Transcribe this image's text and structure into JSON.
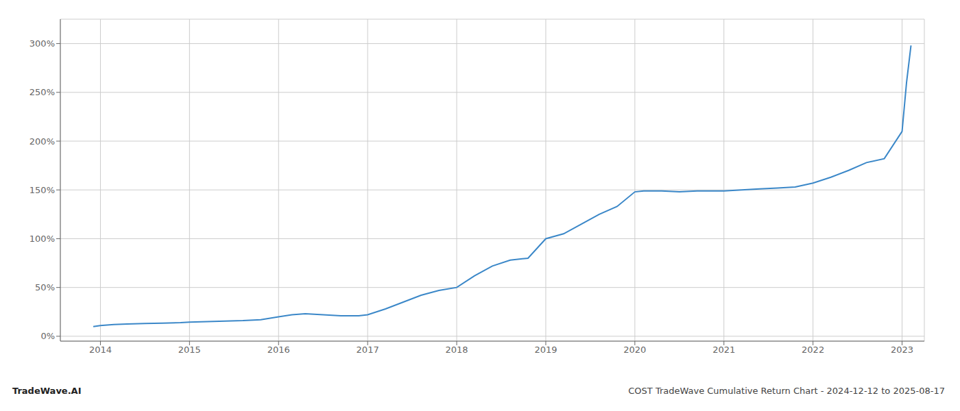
{
  "chart_data": {
    "type": "line",
    "title": "COST TradeWave Cumulative Return Chart - 2024-12-12 to 2025-08-17",
    "annotations": [
      "TradeWave.AI"
    ],
    "color": "#3a87c8",
    "x": [
      2013.92,
      2014.0,
      2014.15,
      2014.3,
      2014.5,
      2014.7,
      2014.9,
      2015.0,
      2015.2,
      2015.4,
      2015.6,
      2015.8,
      2016.0,
      2016.15,
      2016.3,
      2016.5,
      2016.7,
      2016.9,
      2017.0,
      2017.2,
      2017.4,
      2017.6,
      2017.8,
      2018.0,
      2018.2,
      2018.4,
      2018.6,
      2018.8,
      2019.0,
      2019.2,
      2019.4,
      2019.6,
      2019.8,
      2020.0,
      2020.1,
      2020.3,
      2020.5,
      2020.7,
      2020.9,
      2021.0,
      2021.2,
      2021.4,
      2021.6,
      2021.8,
      2022.0,
      2022.2,
      2022.4,
      2022.6,
      2022.8,
      2023.0,
      2023.05,
      2023.1
    ],
    "values": [
      10,
      11,
      12,
      12.5,
      13,
      13.5,
      14,
      14.5,
      15,
      15.5,
      16,
      17,
      20,
      22,
      23,
      22,
      21,
      21,
      22,
      28,
      35,
      42,
      47,
      50,
      62,
      72,
      78,
      80,
      100,
      105,
      115,
      125,
      133,
      148,
      149,
      149,
      148,
      149,
      149,
      149,
      150,
      151,
      152,
      153,
      157,
      163,
      170,
      178,
      182,
      210,
      260,
      298
    ],
    "xlim": [
      2013.55,
      2023.25
    ],
    "xticks": [
      2014,
      2015,
      2016,
      2017,
      2018,
      2019,
      2020,
      2021,
      2022,
      2023
    ],
    "ylim": [
      -5,
      325
    ],
    "yticks": [
      {
        "value": 0,
        "label": "0%"
      },
      {
        "value": 50,
        "label": "50%"
      },
      {
        "value": 100,
        "label": "100%"
      },
      {
        "value": 150,
        "label": "150%"
      },
      {
        "value": 200,
        "label": "200%"
      },
      {
        "value": 250,
        "label": "250%"
      },
      {
        "value": 300,
        "label": "300%"
      }
    ],
    "grid": true
  }
}
